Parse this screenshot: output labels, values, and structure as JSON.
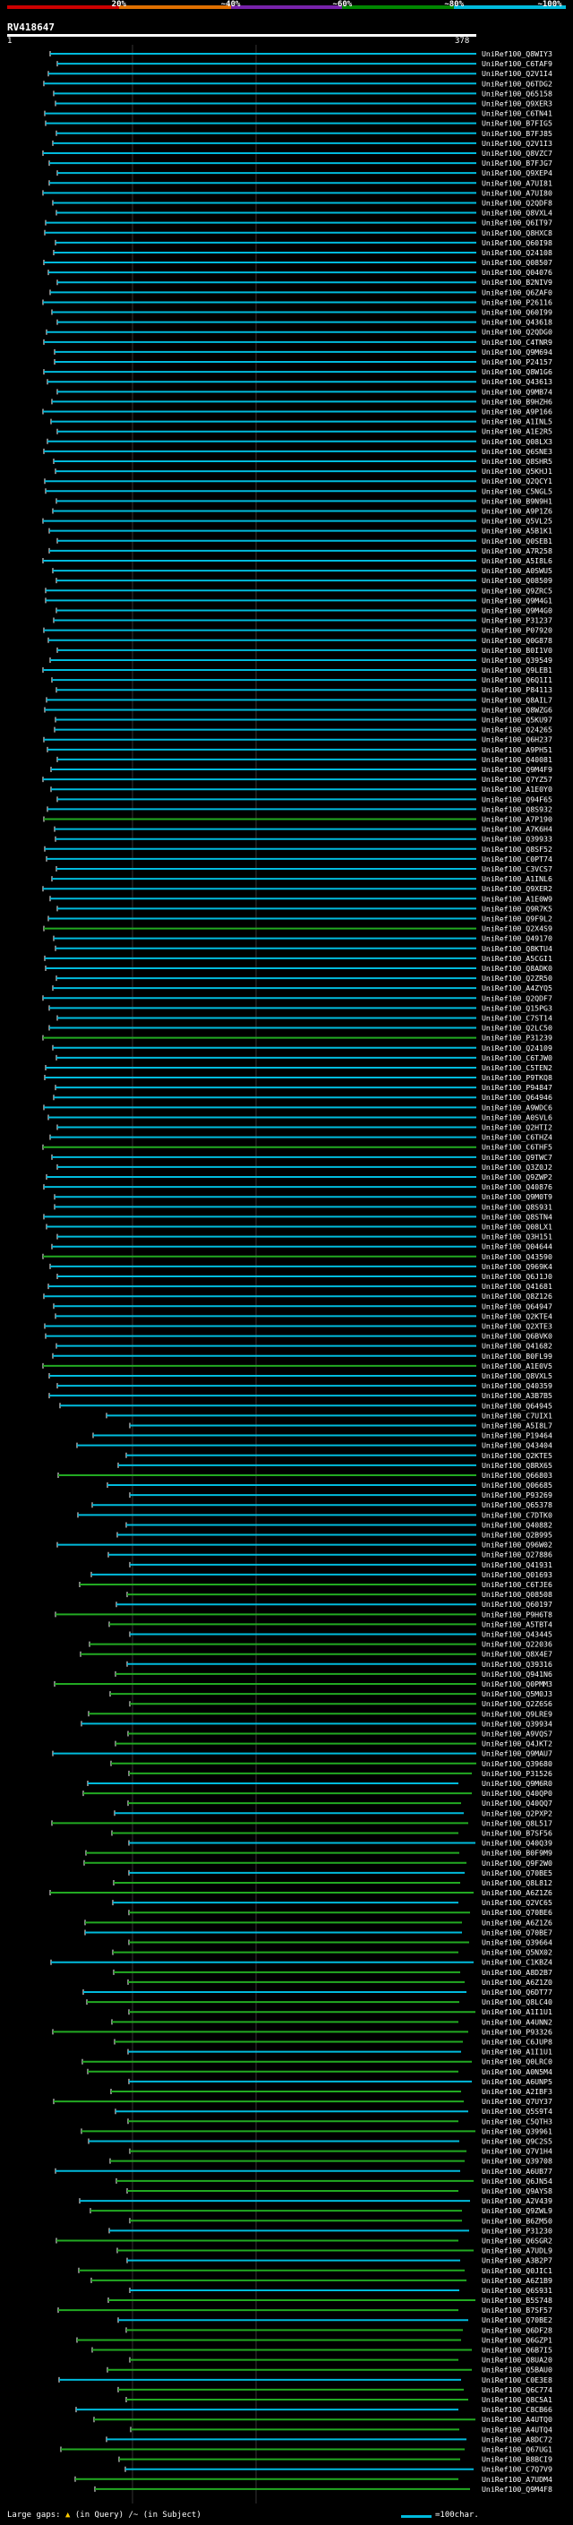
{
  "query": {
    "title": "RV418647",
    "length_start": "1",
    "length_end": "378"
  },
  "scale": {
    "labels": [
      "20%",
      "~40%",
      "~60%",
      "~80%",
      "~100%"
    ],
    "colors": [
      "#cc0000",
      "#e07000",
      "#7722aa",
      "#008800",
      "#00bbdd"
    ]
  },
  "hits": [
    "UniRef100_Q8WIY3",
    "UniRef100_C6TAF9",
    "UniRef100_Q2V1I4",
    "UniRef100_Q6TDG2",
    "UniRef100_Q65158",
    "UniRef100_Q9XER3",
    "UniRef100_C6TN41",
    "UniRef100_B7FIG5",
    "UniRef100_B7FJ85",
    "UniRef100_Q2V1I3",
    "UniRef100_Q8VZC7",
    "UniRef100_B7FJG7",
    "UniRef100_Q9XEP4",
    "UniRef100_A7UI81",
    "UniRef100_A7UI80",
    "UniRef100_Q2QDF8",
    "UniRef100_Q8VXL4",
    "UniRef100_Q6IT97",
    "UniRef100_Q8HXC8",
    "UniRef100_Q60I98",
    "UniRef100_Q24108",
    "UniRef100_Q08507",
    "UniRef100_Q04076",
    "UniRef100_B2NIV9",
    "UniRef100_Q6ZAF0",
    "UniRef100_P26116",
    "UniRef100_Q60I99",
    "UniRef100_Q43618",
    "UniRef100_Q2QDG0",
    "UniRef100_C4TNR9",
    "UniRef100_Q9M694",
    "UniRef100_P24157",
    "UniRef100_Q8W1G6",
    "UniRef100_Q43613",
    "UniRef100_Q9MB74",
    "UniRef100_B9HZH6",
    "UniRef100_A9P166",
    "UniRef100_A1INL5",
    "UniRef100_A1E2R5",
    "UniRef100_Q08LX3",
    "UniRef100_Q6SNE3",
    "UniRef100_Q8SHR5",
    "UniRef100_Q5KHJ1",
    "UniRef100_Q2QCY1",
    "UniRef100_C5NGL5",
    "UniRef100_B9N9H1",
    "UniRef100_A9P1Z6",
    "UniRef100_Q5VL25",
    "UniRef100_A5B1K1",
    "UniRef100_Q0SEB1",
    "UniRef100_A7R258",
    "UniRef100_A5I8L6",
    "UniRef100_A0SWU5",
    "UniRef100_Q08509",
    "UniRef100_Q9ZRC5",
    "UniRef100_Q9M4G1",
    "UniRef100_Q9M4G0",
    "UniRef100_P31237",
    "UniRef100_P07920",
    "UniRef100_Q0G878",
    "UniRef100_B0I1V0",
    "UniRef100_Q39549",
    "UniRef100_Q9LEB1",
    "UniRef100_Q6Q1I1",
    "UniRef100_P84113",
    "UniRef100_Q8AIL7",
    "UniRef100_Q8WZG6",
    "UniRef100_Q5KU97",
    "UniRef100_Q24265",
    "UniRef100_Q6H237",
    "UniRef100_A9PH51",
    "UniRef100_Q40081",
    "UniRef100_Q9M4F9",
    "UniRef100_Q7YZ57",
    "UniRef100_A1E0Y0",
    "UniRef100_Q94F65",
    "UniRef100_Q8S932",
    "UniRef100_A7P190",
    "UniRef100_A7K6H4",
    "UniRef100_Q39933",
    "UniRef100_Q8SF52",
    "UniRef100_C0PT74",
    "UniRef100_C3VCS7",
    "UniRef100_A1INL6",
    "UniRef100_Q9XER2",
    "UniRef100_A1E0W9",
    "UniRef100_Q9R7K5",
    "UniRef100_Q9F9L2",
    "UniRef100_Q2X4S9",
    "UniRef100_Q49170",
    "UniRef100_Q8KTU4",
    "UniRef100_A5CGI1",
    "UniRef100_Q8ADK0",
    "UniRef100_Q2ZR50",
    "UniRef100_A4ZYQ5",
    "UniRef100_Q2QDF7",
    "UniRef100_Q15PG3",
    "UniRef100_C7ST14",
    "UniRef100_Q2LC50",
    "UniRef100_P31239",
    "UniRef100_Q24109",
    "UniRef100_C6TJW0",
    "UniRef100_C5TEN2",
    "UniRef100_P9TKQ8",
    "UniRef100_P94847",
    "UniRef100_Q64946",
    "UniRef100_A9WDC6",
    "UniRef100_A0SVL6",
    "UniRef100_Q2HTI2",
    "UniRef100_C6THZ4",
    "UniRef100_C6THF5",
    "UniRef100_Q9TWC7",
    "UniRef100_Q3Z0J2",
    "UniRef100_Q9ZWP2",
    "UniRef100_Q40876",
    "UniRef100_Q9M0T9",
    "UniRef100_Q8S931",
    "UniRef100_Q8STN4",
    "UniRef100_Q08LX1",
    "UniRef100_Q3H151",
    "UniRef100_Q04644",
    "UniRef100_Q43590",
    "UniRef100_Q969K4",
    "UniRef100_Q6J1J0",
    "UniRef100_Q41681",
    "UniRef100_Q8Z126",
    "UniRef100_Q64947",
    "UniRef100_Q2KTE4",
    "UniRef100_Q2XTE3",
    "UniRef100_Q6BVK0",
    "UniRef100_Q41682",
    "UniRef100_B0FL99",
    "UniRef100_A1E0V5",
    "UniRef100_Q8VXL5",
    "UniRef100_Q40359",
    "UniRef100_A3B7B5",
    "UniRef100_Q64945",
    "UniRef100_C7UIX1",
    "UniRef100_A5I8L7",
    "UniRef100_P19464",
    "UniRef100_Q43404",
    "UniRef100_Q2KTE5",
    "UniRef100_Q8RX65",
    "UniRef100_Q66803",
    "UniRef100_Q06685",
    "UniRef100_P93269",
    "UniRef100_Q65378",
    "UniRef100_C7DTK0",
    "UniRef100_Q40882",
    "UniRef100_Q2B995",
    "UniRef100_Q96W02",
    "UniRef100_Q27886",
    "UniRef100_Q41931",
    "UniRef100_Q01693",
    "UniRef100_C6TJE6",
    "UniRef100_Q08508",
    "UniRef100_Q60197",
    "UniRef100_P9H6T8",
    "UniRef100_A5TBT4",
    "UniRef100_Q43445",
    "UniRef100_Q22036",
    "UniRef100_Q8X4E7",
    "UniRef100_Q39316",
    "UniRef100_Q941N6",
    "UniRef100_Q0PMM3",
    "UniRef100_Q5M0J3",
    "UniRef100_Q2Z6S6",
    "UniRef100_Q9LRE9",
    "UniRef100_Q39934",
    "UniRef100_A9VQS7",
    "UniRef100_Q4JKT2",
    "UniRef100_Q9MAU7",
    "UniRef100_Q39680",
    "UniRef100_P31526",
    "UniRef100_Q9M6R0",
    "UniRef100_Q40QP0",
    "UniRef100_Q40QQ7",
    "UniRef100_Q2PXP2",
    "UniRef100_Q8L517",
    "UniRef100_B7SF56",
    "UniRef100_Q40Q39",
    "UniRef100_B0F9M9",
    "UniRef100_Q9F2W0",
    "UniRef100_Q70BE5",
    "UniRef100_Q8L812",
    "UniRef100_A6Z1Z6",
    "UniRef100_Q2VC65",
    "UniRef100_Q70BE6",
    "UniRef100_A6Z1Z6",
    "UniRef100_Q70BE7",
    "UniRef100_Q39664",
    "UniRef100_Q5NX02",
    "UniRef100_C1KBZ4",
    "UniRef100_A8D2B7",
    "UniRef100_A6Z1Z0",
    "UniRef100_Q6DT77",
    "UniRef100_Q8LC40",
    "UniRef100_A1I1U1",
    "UniRef100_A4UNN2",
    "UniRef100_P93326",
    "UniRef100_C6JUP8",
    "UniRef100_A1I1U1",
    "UniRef100_Q0LRC0",
    "UniRef100_A0N5M4",
    "UniRef100_A6UNP5",
    "UniRef100_A2IBF3",
    "UniRef100_Q7UY37",
    "UniRef100_Q5S9T4",
    "UniRef100_C5QTH3",
    "UniRef100_Q39961",
    "UniRef100_Q9C2S5",
    "UniRef100_Q7V1H4",
    "UniRef100_Q39708",
    "UniRef100_A6UB77",
    "UniRef100_Q6JN54",
    "UniRef100_Q9AYS8",
    "UniRef100_A2V439",
    "UniRef100_Q9ZWL9",
    "UniRef100_B6ZM50",
    "UniRef100_P31230",
    "UniRef100_Q6SGR2",
    "UniRef100_A7UDL9",
    "UniRef100_A3B2P7",
    "UniRef100_Q0JIC1",
    "UniRef100_A6Z1B9",
    "UniRef100_Q6S931",
    "UniRef100_B5S748",
    "UniRef100_B7SF57",
    "UniRef100_Q70BE2",
    "UniRef100_Q6DF28",
    "UniRef100_Q6GZP1",
    "UniRef100_Q6B7I5",
    "UniRef100_Q8UA20",
    "UniRef100_Q5BAU0",
    "UniRef100_C0E3E8",
    "UniRef100_Q6C774",
    "UniRef100_Q8C5A1",
    "UniRef100_C8CB66",
    "UniRef100_A4UTQ0",
    "UniRef100_A4UTQ4",
    "UniRef100_A8DC72",
    "UniRef100_Q67UG1",
    "UniRef100_B8BCI9",
    "UniRef100_C7Q7V9",
    "UniRef100_A7UDM4",
    "UniRef100_Q9M4F8"
  ],
  "footer": {
    "large_gaps": "Large gaps:",
    "in_query": "(in Query)",
    "in_subject": "(in Subject)",
    "legend": "=100char."
  }
}
